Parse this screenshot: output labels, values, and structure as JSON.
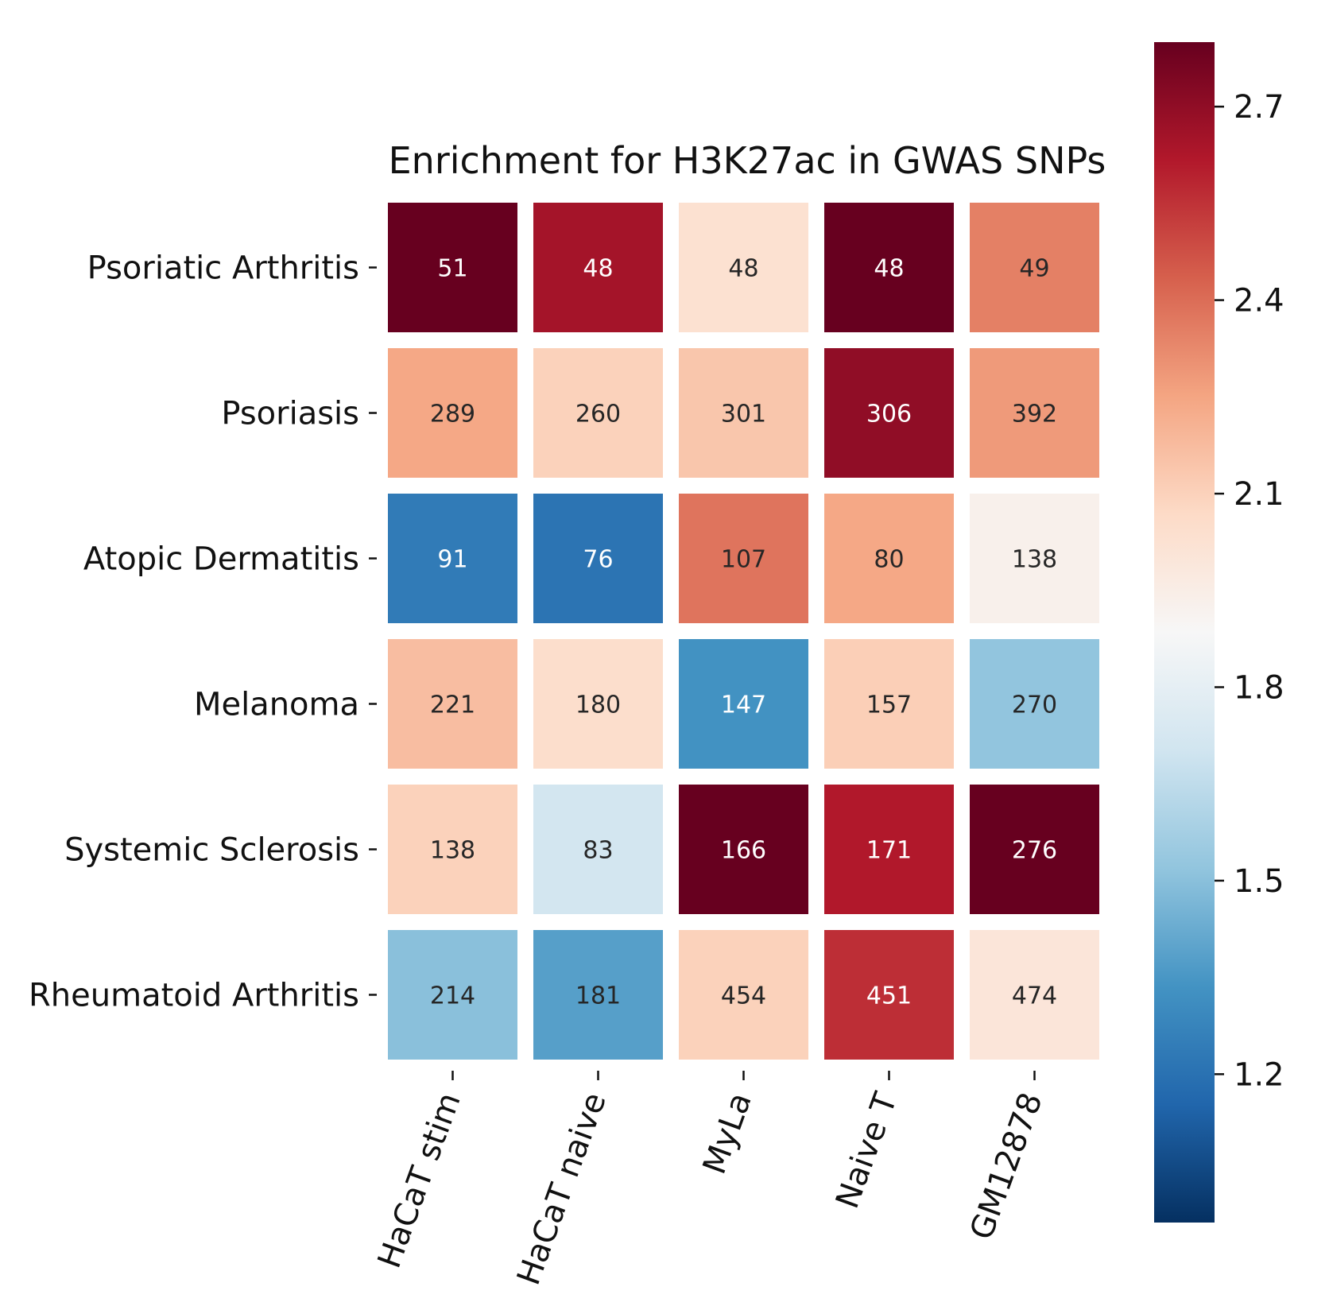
{
  "chart_data": {
    "type": "heatmap",
    "title": "Enrichment for H3K27ac in GWAS SNPs",
    "rows": [
      "Psoriatic Arthritis",
      "Psoriasis",
      "Atopic Dermatitis",
      "Melanoma",
      "Systemic Sclerosis",
      "Rheumatoid Arthritis"
    ],
    "columns": [
      "HaCaT stim",
      "HaCaT naive",
      "MyLa",
      "Naive T",
      "GM12878"
    ],
    "values": [
      [
        2.95,
        2.65,
        2.03,
        2.95,
        2.35
      ],
      [
        2.24,
        2.1,
        2.14,
        2.7,
        2.28
      ],
      [
        1.24,
        1.21,
        2.38,
        2.24,
        1.93
      ],
      [
        2.17,
        2.05,
        1.33,
        2.11,
        1.52
      ],
      [
        2.1,
        1.71,
        2.95,
        2.62,
        2.95
      ],
      [
        1.5,
        1.38,
        2.1,
        2.56,
        2.0
      ]
    ],
    "annotations": [
      [
        "51",
        "48",
        "48",
        "48",
        "49"
      ],
      [
        "289",
        "260",
        "301",
        "306",
        "392"
      ],
      [
        "91",
        "76",
        "107",
        "80",
        "138"
      ],
      [
        "221",
        "180",
        "147",
        "157",
        "270"
      ],
      [
        "138",
        "83",
        "166",
        "171",
        "276"
      ],
      [
        "214",
        "181",
        "454",
        "451",
        "474"
      ]
    ],
    "colorscale": "RdBu_r",
    "colorbar": {
      "range": [
        0.97,
        2.8
      ],
      "ticks": [
        1.2,
        1.5,
        1.8,
        2.1,
        2.4,
        2.7
      ],
      "tick_labels": [
        "1.2",
        "1.5",
        "1.8",
        "2.1",
        "2.4",
        "2.7"
      ]
    },
    "colors": {
      "low": "#053061",
      "mid": "#f7f7f7",
      "high": "#67001f"
    }
  }
}
